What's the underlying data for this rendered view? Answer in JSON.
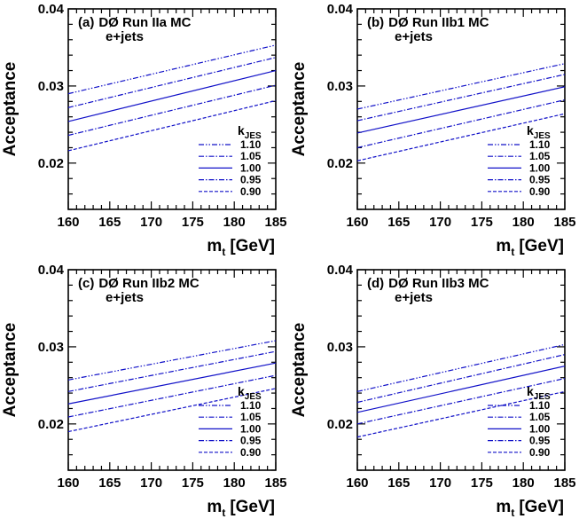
{
  "chart_data": [
    {
      "type": "line",
      "panel_label": "(a)",
      "title": "DØ Run IIa MC",
      "subtitle": "e+jets",
      "xlabel": "m_t [GeV]",
      "xlabel_main": "m",
      "xlabel_sub": "t",
      "xlabel_unit": "[GeV]",
      "ylabel": "Acceptance",
      "xlim": [
        160,
        185
      ],
      "ylim": [
        0.014,
        0.04
      ],
      "xticks": [
        "160",
        "165",
        "170",
        "175",
        "180",
        "185"
      ],
      "yticks": [
        "0.02",
        "0.03",
        "0.04"
      ],
      "legend_title": "k_JES",
      "legend_title_main": "k",
      "legend_title_sub": "JES",
      "legend_position": "bottom-right",
      "x": [
        160,
        185
      ],
      "series": [
        {
          "name": "1.10",
          "style": "dash-dot-dot",
          "values": [
            0.029,
            0.0353
          ]
        },
        {
          "name": "1.05",
          "style": "dash-dot",
          "values": [
            0.0272,
            0.0337
          ]
        },
        {
          "name": "1.00",
          "style": "solid",
          "values": [
            0.0254,
            0.032
          ]
        },
        {
          "name": "0.95",
          "style": "dash-dot",
          "values": [
            0.0236,
            0.0301
          ]
        },
        {
          "name": "0.90",
          "style": "dashed",
          "values": [
            0.0216,
            0.0281
          ]
        }
      ]
    },
    {
      "type": "line",
      "panel_label": "(b)",
      "title": "DØ Run IIb1 MC",
      "subtitle": "e+jets",
      "xlabel": "m_t [GeV]",
      "xlabel_main": "m",
      "xlabel_sub": "t",
      "xlabel_unit": "[GeV]",
      "ylabel": "Acceptance",
      "xlim": [
        160,
        185
      ],
      "ylim": [
        0.014,
        0.04
      ],
      "xticks": [
        "160",
        "165",
        "170",
        "175",
        "180",
        "185"
      ],
      "yticks": [
        "0.02",
        "0.03",
        "0.04"
      ],
      "legend_title": "k_JES",
      "legend_title_main": "k",
      "legend_title_sub": "JES",
      "legend_position": "bottom-right",
      "x": [
        160,
        185
      ],
      "series": [
        {
          "name": "1.10",
          "style": "dash-dot-dot",
          "values": [
            0.027,
            0.0329
          ]
        },
        {
          "name": "1.05",
          "style": "dash-dot",
          "values": [
            0.0255,
            0.0315
          ]
        },
        {
          "name": "1.00",
          "style": "solid",
          "values": [
            0.0239,
            0.0299
          ]
        },
        {
          "name": "0.95",
          "style": "dash-dot",
          "values": [
            0.022,
            0.0282
          ]
        },
        {
          "name": "0.90",
          "style": "dashed",
          "values": [
            0.0203,
            0.0264
          ]
        }
      ]
    },
    {
      "type": "line",
      "panel_label": "(c)",
      "title": "DØ Run IIb2 MC",
      "subtitle": "e+jets",
      "xlabel": "m_t [GeV]",
      "xlabel_main": "m",
      "xlabel_sub": "t",
      "xlabel_unit": "[GeV]",
      "ylabel": "Acceptance",
      "xlim": [
        160,
        185
      ],
      "ylim": [
        0.014,
        0.04
      ],
      "xticks": [
        "160",
        "165",
        "170",
        "175",
        "180",
        "185"
      ],
      "yticks": [
        "0.02",
        "0.03",
        "0.04"
      ],
      "legend_title": "k_JES",
      "legend_title_main": "k",
      "legend_title_sub": "JES",
      "legend_position": "bottom-right",
      "x": [
        160,
        185
      ],
      "series": [
        {
          "name": "1.10",
          "style": "dash-dot-dot",
          "values": [
            0.0257,
            0.0308
          ]
        },
        {
          "name": "1.05",
          "style": "dash-dot",
          "values": [
            0.0242,
            0.0294
          ]
        },
        {
          "name": "1.00",
          "style": "solid",
          "values": [
            0.0226,
            0.0279
          ]
        },
        {
          "name": "0.95",
          "style": "dash-dot",
          "values": [
            0.0209,
            0.0263
          ]
        },
        {
          "name": "0.90",
          "style": "dashed",
          "values": [
            0.019,
            0.0246
          ]
        }
      ]
    },
    {
      "type": "line",
      "panel_label": "(d)",
      "title": "DØ Run IIb3 MC",
      "subtitle": "e+jets",
      "xlabel": "m_t [GeV]",
      "xlabel_main": "m",
      "xlabel_sub": "t",
      "xlabel_unit": "[GeV]",
      "ylabel": "Acceptance",
      "xlim": [
        160,
        185
      ],
      "ylim": [
        0.014,
        0.04
      ],
      "xticks": [
        "160",
        "165",
        "170",
        "175",
        "180",
        "185"
      ],
      "yticks": [
        "0.02",
        "0.03",
        "0.04"
      ],
      "legend_title": "k_JES",
      "legend_title_main": "k",
      "legend_title_sub": "JES",
      "legend_position": "bottom-right",
      "x": [
        160,
        185
      ],
      "series": [
        {
          "name": "1.10",
          "style": "dash-dot-dot",
          "values": [
            0.0242,
            0.0303
          ]
        },
        {
          "name": "1.05",
          "style": "dash-dot",
          "values": [
            0.0228,
            0.029
          ]
        },
        {
          "name": "1.00",
          "style": "solid",
          "values": [
            0.0215,
            0.0275
          ]
        },
        {
          "name": "0.95",
          "style": "dash-dot",
          "values": [
            0.02,
            0.0259
          ]
        },
        {
          "name": "0.90",
          "style": "dashed",
          "values": [
            0.0183,
            0.0242
          ]
        }
      ]
    }
  ],
  "colors": {
    "series": "#1010c8",
    "axes": "#000000",
    "background": "#ffffff"
  }
}
